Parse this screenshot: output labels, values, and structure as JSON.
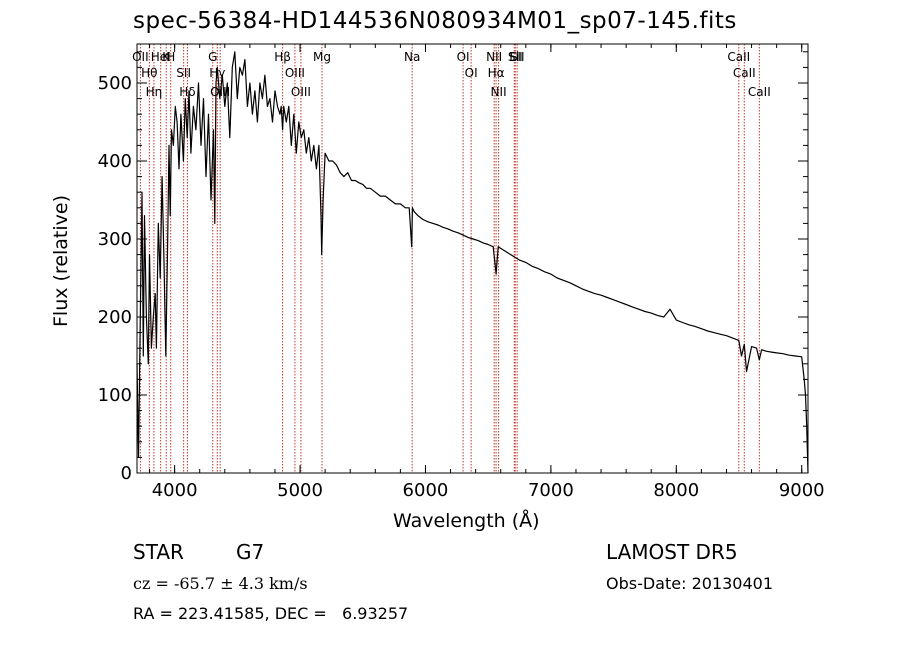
{
  "chart_data": {
    "type": "line",
    "title": "spec-56384-HD144536N080934M01_sp07-145.fits",
    "xlabel": "Wavelength (Å)",
    "ylabel": "Flux (relative)",
    "xlim": [
      3700,
      9050
    ],
    "ylim": [
      0,
      550
    ],
    "xticks": [
      4000,
      5000,
      6000,
      7000,
      8000,
      9000
    ],
    "yticks": [
      0,
      100,
      200,
      300,
      400,
      500
    ],
    "series": [
      {
        "x": [
          3700,
          3712,
          3725,
          3740,
          3750,
          3760,
          3775,
          3790,
          3800,
          3815,
          3830,
          3845,
          3855,
          3870,
          3885,
          3900,
          3915,
          3930,
          3945,
          3955,
          3965,
          3975,
          3990,
          4005,
          4020,
          4035,
          4050,
          4070,
          4085,
          4100,
          4115,
          4130,
          4150,
          4170,
          4190,
          4210,
          4230,
          4250,
          4270,
          4290,
          4310,
          4320,
          4330,
          4340,
          4360,
          4380,
          4400,
          4420,
          4440,
          4460,
          4480,
          4500,
          4520,
          4540,
          4560,
          4580,
          4600,
          4620,
          4640,
          4660,
          4680,
          4700,
          4720,
          4740,
          4760,
          4780,
          4800,
          4820,
          4840,
          4850,
          4861,
          4870,
          4890,
          4910,
          4930,
          4950,
          4970,
          4990,
          5010,
          5030,
          5050,
          5070,
          5090,
          5110,
          5130,
          5150,
          5167,
          5173,
          5184,
          5200,
          5230,
          5260,
          5290,
          5320,
          5350,
          5380,
          5410,
          5440,
          5470,
          5500,
          5530,
          5560,
          5600,
          5640,
          5680,
          5720,
          5760,
          5800,
          5840,
          5870,
          5890,
          5896,
          5910,
          5940,
          5980,
          6020,
          6060,
          6100,
          6140,
          6180,
          6220,
          6260,
          6300,
          6340,
          6380,
          6420,
          6460,
          6500,
          6540,
          6563,
          6580,
          6600,
          6650,
          6700,
          6750,
          6800,
          6850,
          6900,
          6950,
          7000,
          7050,
          7100,
          7150,
          7200,
          7250,
          7300,
          7350,
          7400,
          7450,
          7500,
          7550,
          7600,
          7650,
          7700,
          7750,
          7800,
          7850,
          7900,
          7950,
          8000,
          8050,
          8100,
          8150,
          8200,
          8250,
          8300,
          8350,
          8400,
          8450,
          8498,
          8520,
          8542,
          8560,
          8600,
          8640,
          8662,
          8680,
          8720,
          8760,
          8800,
          8850,
          8900,
          8950,
          9000,
          9020,
          9030,
          9040,
          9050
        ],
        "y": [
          140,
          20,
          180,
          360,
          150,
          330,
          200,
          140,
          280,
          160,
          200,
          230,
          160,
          320,
          250,
          380,
          270,
          150,
          300,
          420,
          330,
          440,
          420,
          470,
          450,
          390,
          460,
          400,
          480,
          430,
          490,
          410,
          470,
          440,
          500,
          420,
          480,
          380,
          460,
          350,
          440,
          320,
          500,
          520,
          480,
          510,
          470,
          500,
          430,
          520,
          540,
          480,
          520,
          510,
          530,
          470,
          500,
          460,
          490,
          450,
          500,
          480,
          510,
          470,
          480,
          450,
          490,
          470,
          460,
          470,
          440,
          470,
          450,
          470,
          420,
          460,
          410,
          450,
          430,
          440,
          410,
          430,
          400,
          420,
          390,
          420,
          330,
          280,
          350,
          410,
          400,
          400,
          395,
          385,
          380,
          385,
          375,
          375,
          372,
          370,
          365,
          365,
          360,
          355,
          355,
          350,
          345,
          345,
          340,
          340,
          290,
          340,
          335,
          330,
          325,
          322,
          320,
          318,
          315,
          313,
          310,
          308,
          305,
          302,
          300,
          298,
          295,
          293,
          290,
          255,
          290,
          288,
          283,
          278,
          273,
          270,
          265,
          262,
          258,
          255,
          250,
          247,
          244,
          240,
          236,
          233,
          230,
          228,
          225,
          222,
          219,
          216,
          213,
          210,
          207,
          205,
          202,
          200,
          210,
          196,
          193,
          190,
          188,
          185,
          182,
          180,
          178,
          176,
          173,
          170,
          150,
          165,
          130,
          162,
          160,
          145,
          158,
          156,
          155,
          154,
          153,
          151,
          150,
          149,
          120,
          100,
          60,
          0
        ]
      }
    ],
    "lines": [
      {
        "x": 3727,
        "labels": [
          "OII"
        ]
      },
      {
        "x": 3798,
        "labels": [
          "Hθ"
        ]
      },
      {
        "x": 3835,
        "labels": [
          "Hη"
        ]
      },
      {
        "x": 3889,
        "labels": [
          "HeI"
        ]
      },
      {
        "x": 3933,
        "labels": [
          "K"
        ]
      },
      {
        "x": 3969,
        "labels": [
          "H"
        ]
      },
      {
        "x": 4072,
        "labels": [
          "SII"
        ]
      },
      {
        "x": 4102,
        "labels": [
          "Hδ"
        ]
      },
      {
        "x": 4304,
        "labels": [
          "G"
        ]
      },
      {
        "x": 4340,
        "labels": [
          "Hγ"
        ]
      },
      {
        "x": 4363,
        "labels": [
          "OIII"
        ]
      },
      {
        "x": 4861,
        "labels": [
          "Hβ"
        ]
      },
      {
        "x": 4959,
        "labels": [
          "OIII"
        ]
      },
      {
        "x": 5007,
        "labels": [
          "OIII"
        ]
      },
      {
        "x": 5175,
        "labels": [
          "Mg"
        ]
      },
      {
        "x": 5894,
        "labels": [
          "Na"
        ]
      },
      {
        "x": 6300,
        "labels": [
          "OI"
        ]
      },
      {
        "x": 6364,
        "labels": [
          "OI"
        ]
      },
      {
        "x": 6548,
        "labels": [
          "NII"
        ]
      },
      {
        "x": 6563,
        "labels": [
          "Hα"
        ]
      },
      {
        "x": 6583,
        "labels": [
          "NII"
        ]
      },
      {
        "x": 6708,
        "labels": [
          "Li"
        ]
      },
      {
        "x": 6716,
        "labels": [
          "SII"
        ]
      },
      {
        "x": 6731,
        "labels": [
          "SII"
        ]
      },
      {
        "x": 8498,
        "labels": [
          "CaII"
        ]
      },
      {
        "x": 8542,
        "labels": [
          "CaII"
        ]
      },
      {
        "x": 8662,
        "labels": [
          "CaII"
        ]
      }
    ]
  },
  "info": {
    "class_label": "STAR",
    "subclass": "G7",
    "cz_text": "cz = -65.7 ± 4.3 km/s",
    "radec_text": "RA = 223.41585, DEC =   6.93257",
    "survey": "LAMOST DR5",
    "obs_date": "Obs-Date: 20130401"
  }
}
